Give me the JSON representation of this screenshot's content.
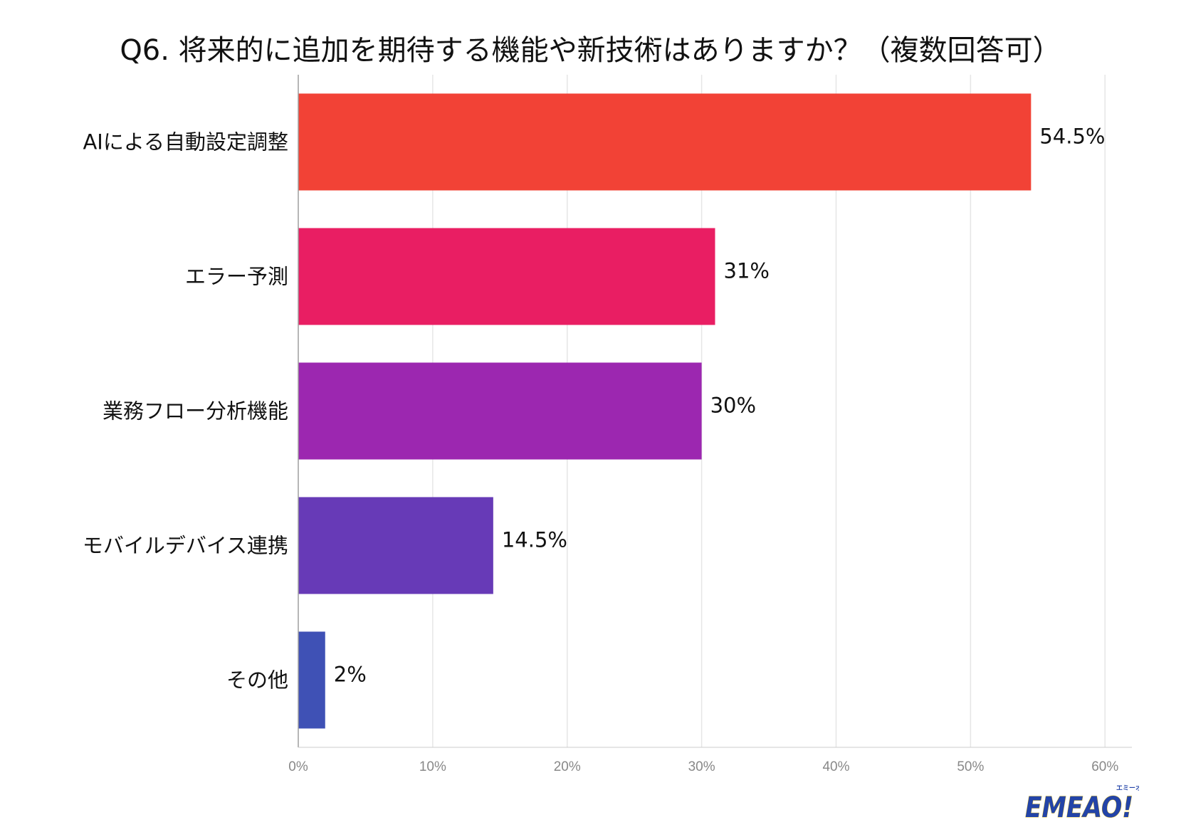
{
  "chart_data": {
    "type": "bar",
    "orientation": "horizontal",
    "title": "Q6. 将来的に追加を期待する機能や新技術はありますか？（複数回答可）",
    "categories": [
      "AIによる自動設定調整",
      "エラー予測",
      "業務フロー分析機能",
      "モバイルデバイス連携",
      "その他"
    ],
    "values": [
      54.5,
      31,
      30,
      14.5,
      2
    ],
    "value_labels": [
      "54.5%",
      "31%",
      "30%",
      "14.5%",
      "2%"
    ],
    "colors": [
      "#f24236",
      "#e91e63",
      "#9c27b0",
      "#673ab7",
      "#3f51b5"
    ],
    "xlim": [
      0,
      62
    ],
    "xticks": [
      0,
      10,
      20,
      30,
      40,
      50,
      60
    ],
    "xtick_labels": [
      "0%",
      "10%",
      "20%",
      "30%",
      "40%",
      "50%",
      "60%"
    ],
    "xlabel": "",
    "ylabel": "",
    "grid": true
  },
  "logo": {
    "text": "EMEAO!",
    "ruby": "エミーオ",
    "color": "#2344a8",
    "accent": "#f5c400"
  }
}
